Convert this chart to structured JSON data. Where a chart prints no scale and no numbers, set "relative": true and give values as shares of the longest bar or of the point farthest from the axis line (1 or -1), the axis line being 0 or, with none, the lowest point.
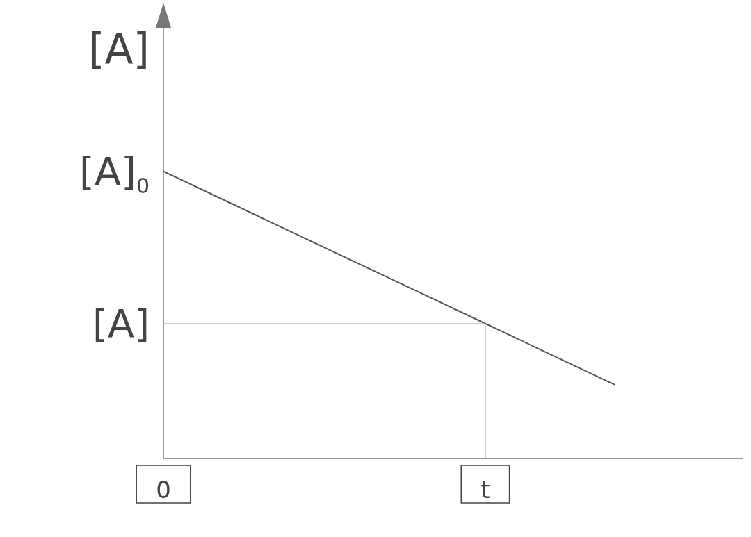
{
  "chart_data": {
    "type": "line",
    "ylabel": "[A]",
    "relative": true,
    "categories": [
      "0",
      null,
      null,
      null,
      null,
      "t",
      null,
      null,
      null,
      null
    ],
    "series": [
      {
        "color": "#555555",
        "values": [
          1,
          0.894,
          0.788,
          0.682,
          0.576,
          0.47,
          0.364,
          0.258,
          null,
          null
        ]
      }
    ],
    "annotations": [
      {
        "text": "[A]$_{0}$",
        "x": "0",
        "y": 1
      }
    ],
    "ref_lines": [
      {
        "axis": "x",
        "value": "t",
        "color": "#bbbbbb"
      },
      {
        "axis": "y",
        "value": 0.47,
        "label": "[A]",
        "color": "#bbbbbb"
      }
    ],
    "grid": false,
    "marker": "none",
    "line_style": "solid"
  }
}
